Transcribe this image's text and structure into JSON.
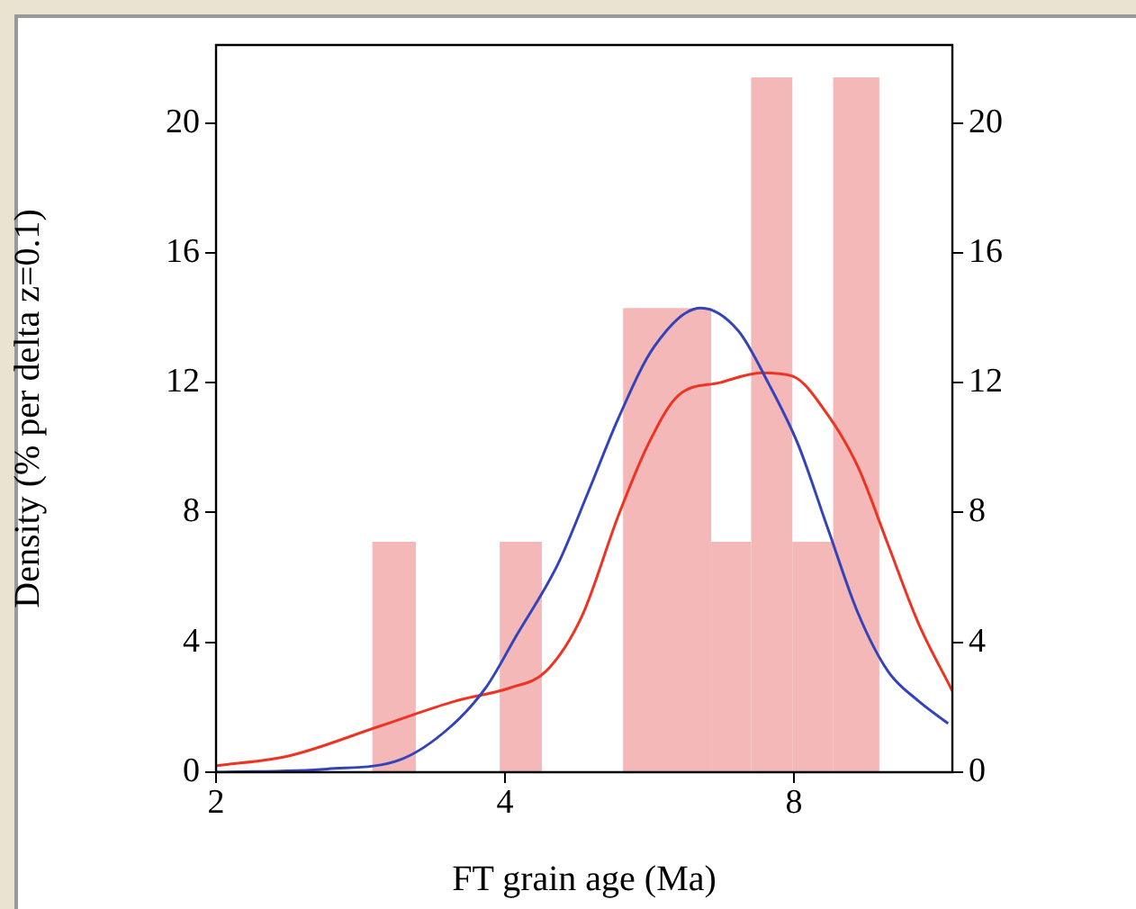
{
  "chart_data": {
    "type": "histogram",
    "xlabel": "FT grain age (Ma)",
    "ylabel": "Density (% per delta z=0.1)",
    "bins": [
      2.91,
      3.23,
      3.95,
      4.37,
      5.31,
      6.56,
      7.22,
      7.97,
      8.79,
      9.82
    ],
    "values": [
      7.1,
      0,
      7.1,
      0,
      14.3,
      7.1,
      21.4,
      7.1,
      21.4
    ],
    "color": "#f5b8b8",
    "series": [
      {
        "type": "line",
        "color": "#3344bb",
        "x": [
          2,
          2.61,
          3.12,
          3.51,
          3.82,
          4.11,
          4.54,
          4.88,
          5.25,
          5.72,
          6.4,
          7.0,
          7.52,
          8.08,
          8.68,
          9.33,
          10.03,
          10.78,
          11.58
        ],
        "values": [
          0,
          0.1,
          0.4,
          1.4,
          2.6,
          4.2,
          6.4,
          8.6,
          10.9,
          13.1,
          14.3,
          13.6,
          12.0,
          10.1,
          7.5,
          4.9,
          3.1,
          2.2,
          1.5
        ]
      },
      {
        "type": "line",
        "color": "#ee3322",
        "x": [
          2,
          2.38,
          2.95,
          3.56,
          4.05,
          4.41,
          4.81,
          5.25,
          5.64,
          6.06,
          6.7,
          7.41,
          7.97,
          8.68,
          9.33,
          10.03,
          10.78,
          11.7
        ],
        "values": [
          0.2,
          0.5,
          1.4,
          2.2,
          2.6,
          3.1,
          4.8,
          7.9,
          10.1,
          11.6,
          12.0,
          12.3,
          12.2,
          11.0,
          9.4,
          7.0,
          4.6,
          2.5
        ]
      }
    ],
    "log": "x",
    "xlim": [
      2,
      11.7
    ],
    "xticks": [
      2,
      4,
      8
    ],
    "ylim": [
      0,
      22.4
    ],
    "yticks": [
      0,
      4,
      8,
      12,
      16,
      20
    ],
    "y2lim": [
      0,
      22.4
    ],
    "y2ticks": [
      0,
      4,
      8,
      12,
      16,
      20
    ],
    "grid": false,
    "legend": false,
    "marker": "none",
    "line_style": "solid"
  }
}
